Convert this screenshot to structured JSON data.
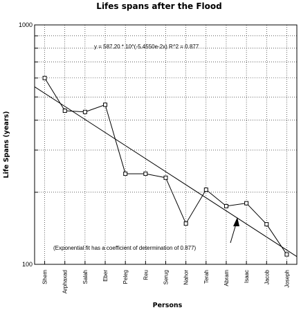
{
  "chart_data": {
    "type": "line",
    "title": "Lifes spans after the Flood",
    "xlabel": "Persons",
    "ylabel": "Life Spans (years)",
    "yscale": "log",
    "ylim": [
      100,
      1000
    ],
    "ytick_labels": [
      "1000",
      "100"
    ],
    "categories": [
      "Shem",
      "Arphaxad",
      "Salah",
      "Eber",
      "Peleg",
      "Reu",
      "Serug",
      "Nahor",
      "Terah",
      "Abram",
      "Isaac",
      "Jacob",
      "Joseph"
    ],
    "series": [
      {
        "values": [
          600,
          438,
          433,
          464,
          239,
          239,
          230,
          148,
          205,
          175,
          180,
          147,
          110
        ]
      }
    ],
    "fit": {
      "label": "y = 587.20 * 10^(-5.4550e-2x)   R^2 = 0.877",
      "a": 587.2,
      "b": -0.05455,
      "r2": 0.877
    },
    "annotation": "(Exponential fit has a coefficient of determination of 0.877)",
    "grid": true,
    "legend": "none"
  }
}
